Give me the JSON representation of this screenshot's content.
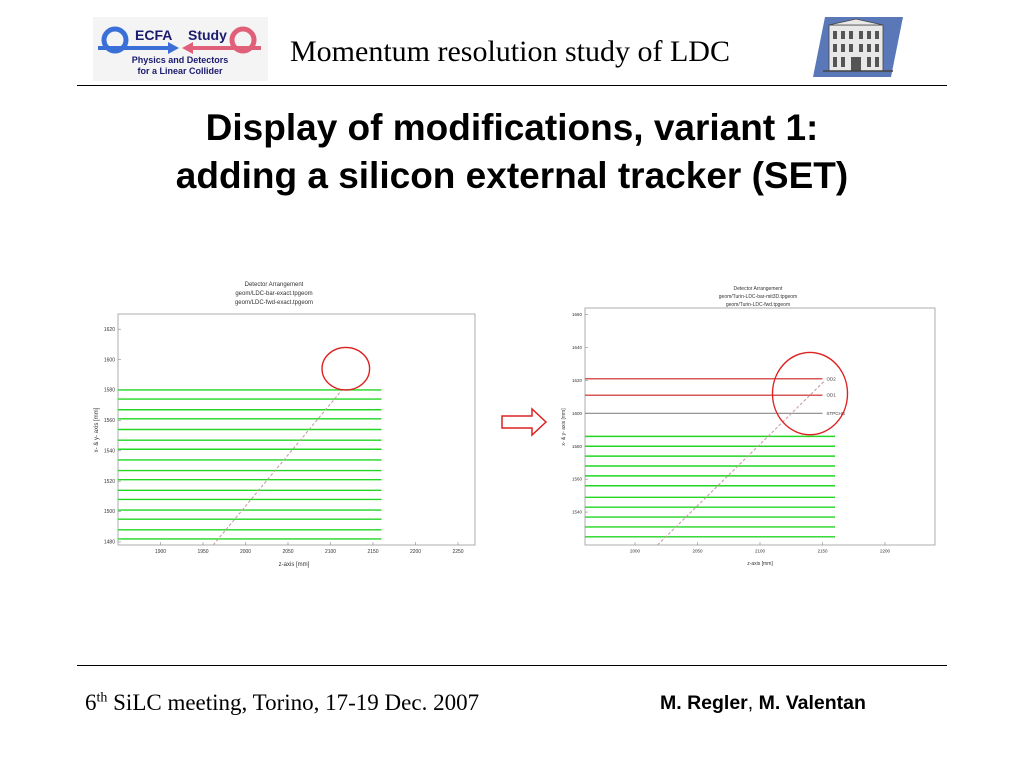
{
  "logo": {
    "brand": "ECFA",
    "study": "Study",
    "line1": "Physics and Detectors",
    "line2": "for a Linear Collider",
    "colors": {
      "blue": "#3b6fd8",
      "pink": "#e0607a",
      "text": "#1a1a6e"
    }
  },
  "header": {
    "title": "Momentum resolution study of LDC"
  },
  "building": {
    "icon": "building-icon"
  },
  "slide": {
    "title_line1": "Display of modifications, variant 1:",
    "title_line2": "adding a silicon external tracker (SET)"
  },
  "chart_data": [
    {
      "type": "line",
      "title": "Detector Arrangement",
      "subtitle": [
        "geom/LDC-bar-exact.tpgeom",
        "geom/LDC-fwd-exact.tpgeom"
      ],
      "xlabel": "z-axis [mm]",
      "ylabel": "x- & y- axis [mm]",
      "xlim": [
        1850,
        2270
      ],
      "ylim": [
        1478,
        1630
      ],
      "xticks": [
        1900,
        1950,
        2000,
        2050,
        2100,
        2150,
        2200,
        2250
      ],
      "yticks": [
        1480,
        1500,
        1520,
        1540,
        1560,
        1580,
        1600,
        1620
      ],
      "layers": {
        "color": "#22d622",
        "x_range": [
          1850,
          2160
        ],
        "y_values": [
          1482,
          1488,
          1495,
          1501,
          1508,
          1514,
          1521,
          1527,
          1534,
          1541,
          1547,
          1554,
          1561,
          1567,
          1574,
          1580
        ]
      },
      "track": {
        "color": "#c8a0a0",
        "x": [
          1962,
          2115
        ],
        "y": [
          1478,
          1581
        ]
      },
      "highlight": {
        "color": "#dd2222",
        "cx": 2118,
        "cy": 1594,
        "rx": 28,
        "ry": 14
      }
    },
    {
      "type": "line",
      "title": "Detector Arrangement",
      "subtitle": [
        "geom/Turin-LDC-bar-mit3D.tpgeom",
        "geom/Turin-LDC-fwd.tpgeom"
      ],
      "xlabel": "z-axis [mm]",
      "ylabel": "x- & y- axis [mm]",
      "xlim": [
        1960,
        2240
      ],
      "ylim": [
        1520,
        1664
      ],
      "xticks": [
        2000,
        2050,
        2100,
        2150,
        2200
      ],
      "yticks": [
        1540,
        1560,
        1580,
        1600,
        1620,
        1640,
        1660
      ],
      "layers": {
        "color": "#22d622",
        "x_range": [
          1960,
          2160
        ],
        "y_values": [
          1525,
          1531,
          1537,
          1543,
          1549,
          1556,
          1562,
          1568,
          1574,
          1580,
          1586
        ]
      },
      "extra_layers": [
        {
          "name": "OD2",
          "color": "#cc2222",
          "y": 1621
        },
        {
          "name": "OD1",
          "color": "#cc2222",
          "y": 1611
        },
        {
          "name": "XTPCHG",
          "color": "#888888",
          "y": 1600
        }
      ],
      "x_range_extra": [
        1960,
        2150
      ],
      "track": {
        "color": "#c8a0a0",
        "x": [
          2018,
          2152
        ],
        "y": [
          1520,
          1620
        ]
      },
      "highlight": {
        "color": "#dd2222",
        "cx": 2140,
        "cy": 1612,
        "rx": 30,
        "ry": 25
      }
    }
  ],
  "arrow": {
    "color": "#dd2222"
  },
  "footer": {
    "meeting_num": "6",
    "meeting_sup": "th",
    "meeting_text": " SiLC meeting, Torino, 17-19 Dec. 2007",
    "author1": "M. Regler",
    "sep": ", ",
    "author2": "M. Valentan"
  }
}
